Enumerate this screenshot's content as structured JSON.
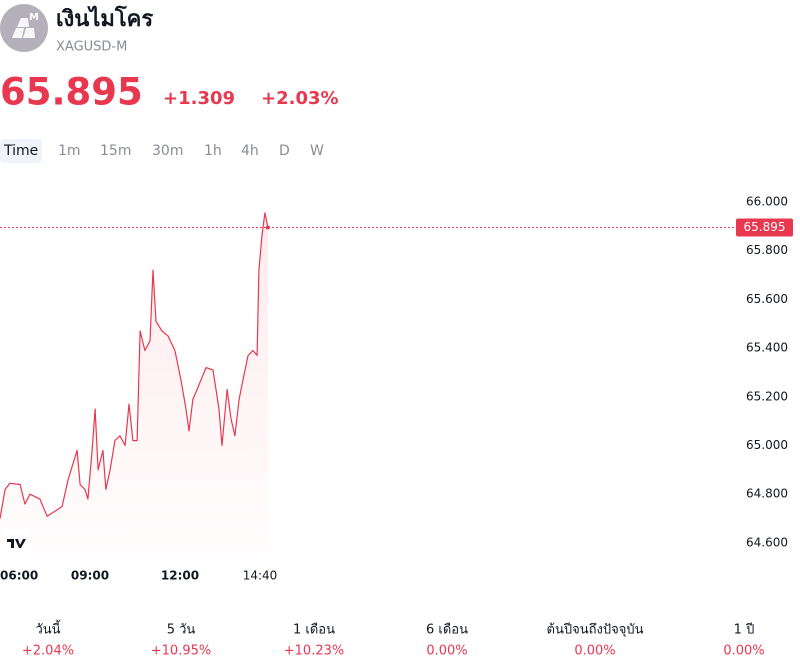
{
  "header": {
    "icon_badge": "M",
    "title": "เงินไมโคร",
    "symbol": "XAGUSD-M",
    "change": "+1.309",
    "change_percent": "+2.03%"
  },
  "timeframes": [
    "Time",
    "1m",
    "15m",
    "30m",
    "1h",
    "4h",
    "D",
    "W"
  ],
  "chart_data": {
    "type": "line",
    "color": "#e8384f",
    "x": [
      6.0,
      6.17,
      6.33,
      6.67,
      6.83,
      7.0,
      7.33,
      7.57,
      7.83,
      8.07,
      8.27,
      8.47,
      8.57,
      8.67,
      8.83,
      8.93,
      9.07,
      9.17,
      9.27,
      9.43,
      9.53,
      9.67,
      9.83,
      10.0,
      10.17,
      10.3,
      10.43,
      10.57,
      10.67,
      10.83,
      11.0,
      11.1,
      11.2,
      11.4,
      11.6,
      11.83,
      12.03,
      12.2,
      12.3,
      12.43,
      12.57,
      12.7,
      12.87,
      13.1,
      13.3,
      13.4,
      13.57,
      13.7,
      13.83,
      13.97,
      14.1,
      14.27,
      14.43,
      14.57,
      14.63,
      14.73,
      14.83,
      14.93
    ],
    "values": [
      64.7,
      64.82,
      64.845,
      64.84,
      64.76,
      64.8,
      64.78,
      64.71,
      64.73,
      64.75,
      64.86,
      64.94,
      64.98,
      64.84,
      64.82,
      64.78,
      64.98,
      65.15,
      64.9,
      64.98,
      64.82,
      64.9,
      65.02,
      65.04,
      65.0,
      65.17,
      65.02,
      65.02,
      65.47,
      65.39,
      65.43,
      65.72,
      65.51,
      65.47,
      65.45,
      65.39,
      65.27,
      65.15,
      65.06,
      65.19,
      65.23,
      65.27,
      65.32,
      65.31,
      65.15,
      65.0,
      65.23,
      65.11,
      65.04,
      65.19,
      65.27,
      65.37,
      65.39,
      65.37,
      65.72,
      65.86,
      65.955,
      65.895
    ],
    "last_value": 65.895,
    "xlim": [
      6,
      30.5
    ],
    "xticks": [
      {
        "value": 6,
        "label": "06:00"
      },
      {
        "value": 9,
        "label": "09:00"
      },
      {
        "value": 12,
        "label": "12:00"
      },
      {
        "value": 14.667,
        "label": "14:40"
      }
    ],
    "ylim": [
      64.53,
      66.09
    ],
    "yticks": [
      {
        "value": 64.6,
        "label": "64.600"
      },
      {
        "value": 64.8,
        "label": "64.800"
      },
      {
        "value": 65.0,
        "label": "65.000"
      },
      {
        "value": 65.2,
        "label": "65.200"
      },
      {
        "value": 65.4,
        "label": "65.400"
      },
      {
        "value": 65.6,
        "label": "65.600"
      },
      {
        "value": 65.8,
        "label": "65.800"
      },
      {
        "value": 66.0,
        "label": "66.000"
      }
    ]
  },
  "performance": [
    {
      "label": "วันนี้",
      "value": "+2.04%"
    },
    {
      "label": "5 วัน",
      "value": "+10.95%"
    },
    {
      "label": "1 เดือน",
      "value": "+10.23%"
    },
    {
      "label": "6 เดือน",
      "value": "0.00%"
    },
    {
      "label": "ต้นปีจนถึงปัจจุบัน",
      "value": "0.00%"
    },
    {
      "label": "1 ปี",
      "value": "0.00%"
    }
  ]
}
